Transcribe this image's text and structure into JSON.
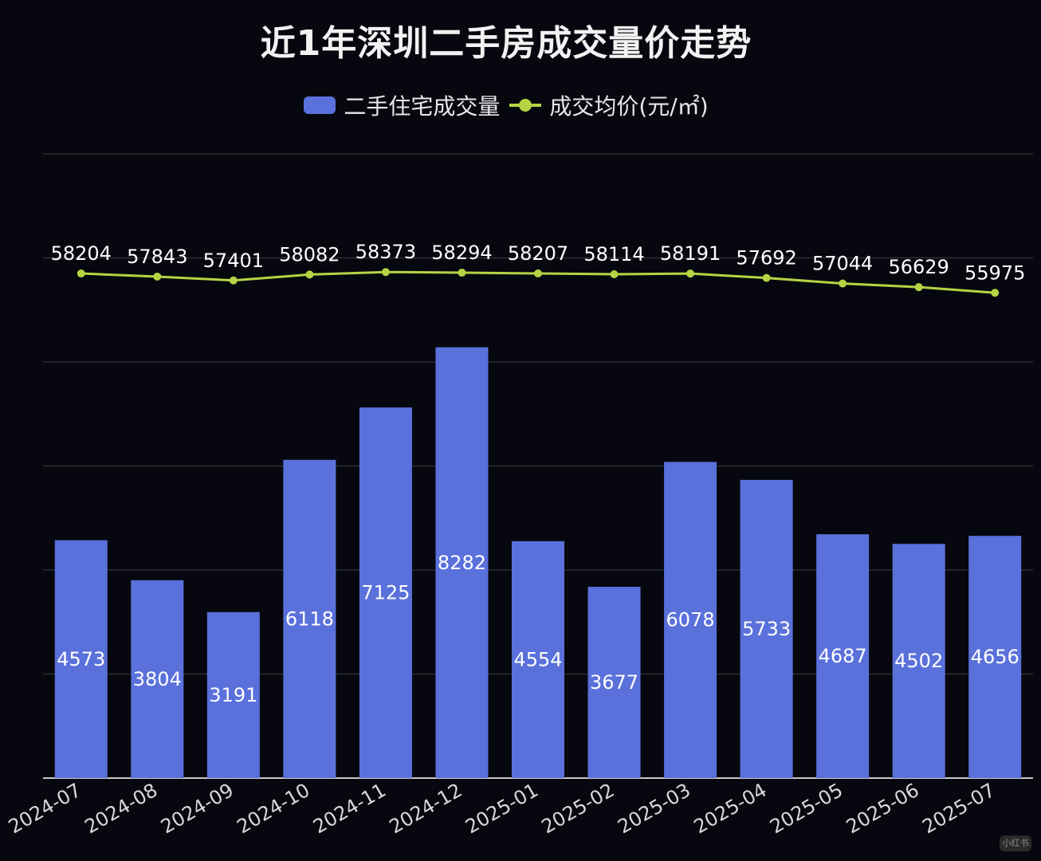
{
  "title": "近1年深圳二手房成交量价走势",
  "legend": {
    "volume": "二手住宅成交量",
    "price": "成交均价(元/㎡)"
  },
  "colors": {
    "background": "#07080f",
    "bar": "#5a71db",
    "line": "#b5d444",
    "grid": "#2b2e36"
  },
  "watermark": "小红书",
  "chart_data": {
    "type": "bar",
    "title": "近1年深圳二手房成交量价走势",
    "categories": [
      "2024-07",
      "2024-08",
      "2024-09",
      "2024-10",
      "2024-11",
      "2024-12",
      "2025-01",
      "2025-02",
      "2025-03",
      "2025-04",
      "2025-05",
      "2025-06",
      "2025-07"
    ],
    "series": [
      {
        "name": "二手住宅成交量",
        "type": "bar",
        "values": [
          4573,
          3804,
          3191,
          6118,
          7125,
          8282,
          4554,
          3677,
          6078,
          5733,
          4687,
          4502,
          4656
        ]
      },
      {
        "name": "成交均价(元/㎡)",
        "type": "line",
        "values": [
          58204,
          57843,
          57401,
          58082,
          58373,
          58294,
          58207,
          58114,
          58191,
          57692,
          57044,
          56629,
          55975
        ]
      }
    ],
    "ylim_volume": [
      0,
      12000
    ],
    "ylim_price": [
      0,
      72000
    ],
    "grid": true,
    "legend_position": "top-center",
    "xtick_rotation": -30
  }
}
